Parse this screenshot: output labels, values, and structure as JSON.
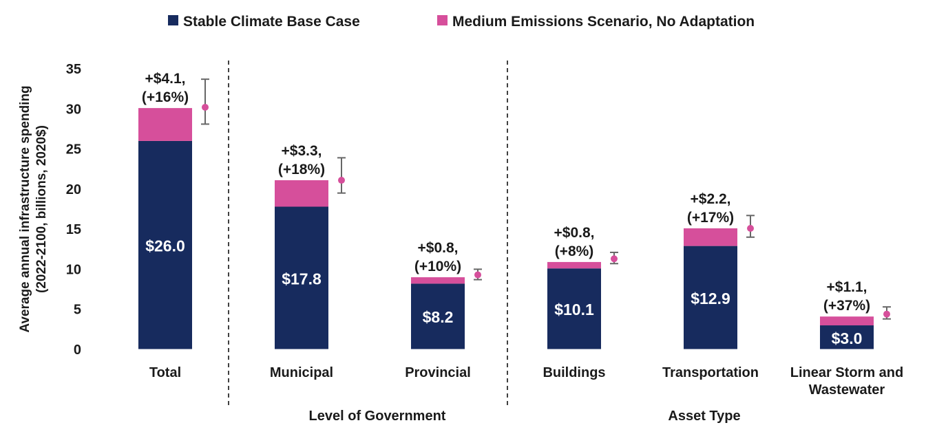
{
  "chart_data": {
    "type": "bar",
    "stacked": true,
    "categories": [
      "Total",
      "Municipal",
      "Provincial",
      "Buildings",
      "Transportation",
      "Linear Storm and Wastewater"
    ],
    "category_lines": [
      [
        "Total"
      ],
      [
        "Municipal"
      ],
      [
        "Provincial"
      ],
      [
        "Buildings"
      ],
      [
        "Transportation"
      ],
      [
        "Linear Storm and",
        "Wastewater"
      ]
    ],
    "series": [
      {
        "name": "Stable Climate Base Case",
        "color": "#172b5e",
        "values": [
          26.0,
          17.8,
          8.2,
          10.1,
          12.9,
          3.0
        ],
        "labels": [
          "$26.0",
          "$17.8",
          "$8.2",
          "$10.1",
          "$12.9",
          "$3.0"
        ]
      },
      {
        "name": "Medium Emissions Scenario, No Adaptation",
        "color": "#d64f9b",
        "values": [
          4.1,
          3.3,
          0.8,
          0.8,
          2.2,
          1.1
        ],
        "labels": [
          [
            "+$4.1,",
            "(+16%)"
          ],
          [
            "+$3.3,",
            "(+18%)"
          ],
          [
            "+$0.8,",
            "(+10%)"
          ],
          [
            "+$0.8,",
            "(+8%)"
          ],
          [
            "+$2.2,",
            "(+17%)"
          ],
          [
            "+$1.1,",
            "(+37%)"
          ]
        ]
      }
    ],
    "error_bars": {
      "color": "#d64f9b",
      "whisker_color": "#666666",
      "center": [
        30.2,
        21.1,
        9.3,
        11.3,
        15.1,
        4.4
      ],
      "low": [
        28.1,
        19.5,
        8.7,
        10.7,
        14.0,
        3.8
      ],
      "high": [
        33.7,
        23.9,
        10.0,
        12.1,
        16.7,
        5.3
      ]
    },
    "groups": [
      {
        "label": "",
        "categories": [
          "Total"
        ]
      },
      {
        "label": "Level of Government",
        "categories": [
          "Municipal",
          "Provincial"
        ]
      },
      {
        "label": "Asset Type",
        "categories": [
          "Buildings",
          "Transportation",
          "Linear Storm and Wastewater"
        ]
      }
    ],
    "ylabel_lines": [
      "Average annual infrastructure spending",
      "(2022-2100, billions, 2020$)"
    ],
    "ylim": [
      0,
      35
    ],
    "yticks": [
      0,
      5,
      10,
      15,
      20,
      25,
      30,
      35
    ],
    "legend_position": "top",
    "grid": false
  }
}
